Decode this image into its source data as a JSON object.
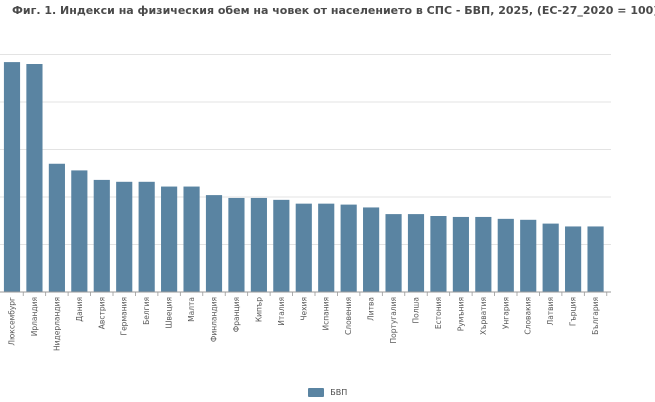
{
  "chart_data": {
    "type": "bar",
    "title": "Фиг. 1. Индекси на физическия обем на човек от населението в СПС - БВП, 2025, (ЕС-27_2020 = 100)",
    "xlabel": "",
    "ylabel": "",
    "categories": [
      "Люксембург",
      "Ирландия",
      "Нидерландия",
      "Дания",
      "Австрия",
      "Германия",
      "Белгия",
      "Швеция",
      "Малта",
      "Финландия",
      "Франция",
      "Кипър",
      "Италия",
      "Чехия",
      "Испания",
      "Словения",
      "Литва",
      "Португалия",
      "Полша",
      "Естония",
      "Румъния",
      "Хърватия",
      "Унгария",
      "Словакия",
      "Латвия",
      "Гърция",
      "България"
    ],
    "series": [
      {
        "name": "БВП",
        "values": [
          242,
          240,
          135,
          128,
          118,
          116,
          116,
          111,
          111,
          102,
          99,
          99,
          97,
          93,
          93,
          92,
          89,
          82,
          82,
          80,
          79,
          79,
          77,
          76,
          72,
          69,
          69
        ]
      }
    ],
    "ylim": [
      0,
      260
    ],
    "grid": true,
    "legend": "bottom-center",
    "colors": {
      "bar": "#5a84a2",
      "grid": "#e3e3e3",
      "axis": "#9a9a9a"
    }
  }
}
